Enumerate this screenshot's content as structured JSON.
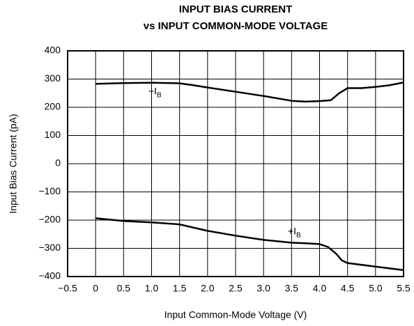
{
  "chart_data": {
    "type": "line",
    "title": [
      "INPUT BIAS CURRENT",
      "vs INPUT COMMON-MODE VOLTAGE"
    ],
    "x_label": "Input Common-Mode Voltage (V)",
    "y_label": "Input Bias Current (pA)",
    "xlim": [
      -0.5,
      5.5
    ],
    "ylim": [
      -400,
      400
    ],
    "xticks": [
      {
        "value": -0.5,
        "label": "−0.5"
      },
      0,
      0.5,
      {
        "value": 1,
        "label": "1.0"
      },
      1.5,
      {
        "value": 2,
        "label": "2.0"
      },
      2.5,
      {
        "value": 3,
        "label": "3.0"
      },
      3.5,
      {
        "value": 4,
        "label": "4.0"
      },
      4.5,
      {
        "value": 5,
        "label": "5.0"
      },
      5.5
    ],
    "yticks": [
      {
        "value": -400,
        "label": "−400"
      },
      {
        "value": -300,
        "label": "−300"
      },
      {
        "value": -200,
        "label": "−200"
      },
      {
        "value": -100,
        "label": "−100"
      },
      0,
      100,
      200,
      300,
      400
    ],
    "grid": true,
    "series": [
      {
        "name": "−I",
        "name_sub": "B",
        "color": "#000000",
        "x": [
          0,
          0.5,
          1.0,
          1.5,
          1.75,
          2.0,
          2.5,
          3.0,
          3.5,
          3.75,
          4.0,
          4.2,
          4.35,
          4.5,
          4.75,
          5.0,
          5.25,
          5.5
        ],
        "values": [
          283,
          286,
          287,
          285,
          278,
          270,
          255,
          240,
          223,
          220,
          222,
          225,
          250,
          268,
          268,
          272,
          278,
          288
        ]
      },
      {
        "name": "+I",
        "name_sub": "B",
        "color": "#000000",
        "x": [
          0,
          0.5,
          1.0,
          1.5,
          2.0,
          2.5,
          3.0,
          3.5,
          3.75,
          4.0,
          4.15,
          4.3,
          4.4,
          4.5,
          5.0,
          5.5
        ],
        "values": [
          -193,
          -203,
          -208,
          -215,
          -238,
          -255,
          -270,
          -280,
          -282,
          -285,
          -295,
          -320,
          -343,
          -352,
          -365,
          -377
        ]
      }
    ]
  }
}
